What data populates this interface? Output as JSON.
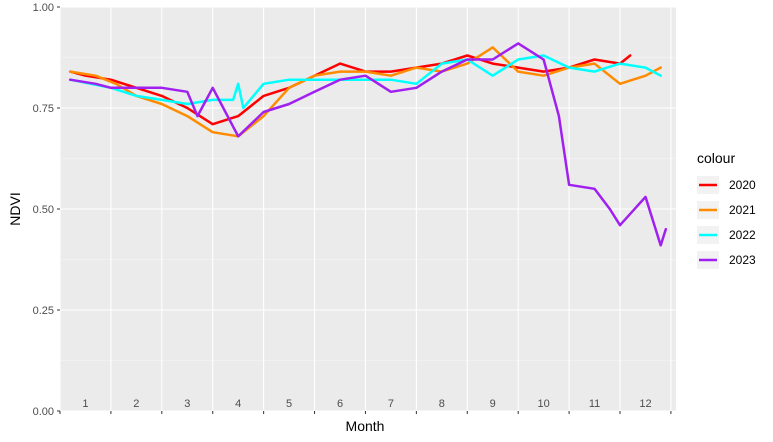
{
  "chart_data": {
    "type": "line",
    "title": "",
    "xlabel": "Month",
    "ylabel": "NDVI",
    "ylim": [
      0,
      1
    ],
    "xlim": [
      0.5,
      12.6
    ],
    "yticks": [
      0,
      0.25,
      0.5,
      0.75,
      1
    ],
    "ytick_labels": [
      "0.00",
      "0.25",
      "0.50",
      "0.75",
      "1.00"
    ],
    "month_labels": [
      "1",
      "2",
      "3",
      "4",
      "5",
      "6",
      "7",
      "8",
      "9",
      "10",
      "11",
      "12"
    ],
    "panel_background": "#ebebeb",
    "grid": true,
    "legend": {
      "title": "colour",
      "position": "right"
    },
    "series": [
      {
        "name": "2020",
        "color": "#ff0000",
        "x": [
          0.7,
          1.0,
          1.5,
          2.0,
          2.5,
          3.0,
          3.5,
          4.0,
          4.5,
          5.0,
          5.5,
          6.0,
          6.5,
          7.0,
          7.5,
          8.0,
          8.5,
          9.0,
          9.5,
          10.0,
          10.5,
          11.0,
          11.5,
          11.7
        ],
        "y": [
          0.84,
          0.83,
          0.82,
          0.8,
          0.78,
          0.75,
          0.71,
          0.73,
          0.78,
          0.8,
          0.83,
          0.86,
          0.84,
          0.84,
          0.85,
          0.86,
          0.88,
          0.86,
          0.85,
          0.84,
          0.85,
          0.87,
          0.86,
          0.88
        ]
      },
      {
        "name": "2021",
        "color": "#ff8c00",
        "x": [
          0.7,
          1.2,
          1.6,
          2.0,
          2.5,
          3.0,
          3.5,
          4.0,
          4.5,
          5.0,
          5.5,
          6.0,
          6.5,
          7.0,
          7.5,
          8.0,
          8.5,
          9.0,
          9.5,
          10.0,
          10.5,
          11.0,
          11.5,
          12.0,
          12.3
        ],
        "y": [
          0.84,
          0.83,
          0.81,
          0.78,
          0.76,
          0.73,
          0.69,
          0.68,
          0.73,
          0.8,
          0.83,
          0.84,
          0.84,
          0.83,
          0.85,
          0.84,
          0.86,
          0.9,
          0.84,
          0.83,
          0.85,
          0.86,
          0.81,
          0.83,
          0.85
        ]
      },
      {
        "name": "2022",
        "color": "#00ffff",
        "x": [
          0.7,
          1.1,
          1.5,
          2.0,
          2.5,
          3.0,
          3.5,
          3.9,
          4.0,
          4.1,
          4.5,
          5.0,
          5.5,
          6.0,
          6.5,
          7.0,
          7.5,
          8.0,
          8.5,
          9.0,
          9.5,
          10.0,
          10.5,
          11.0,
          11.5,
          12.0,
          12.3
        ],
        "y": [
          0.82,
          0.81,
          0.8,
          0.78,
          0.77,
          0.76,
          0.77,
          0.77,
          0.81,
          0.75,
          0.81,
          0.82,
          0.82,
          0.82,
          0.82,
          0.82,
          0.81,
          0.86,
          0.87,
          0.83,
          0.87,
          0.88,
          0.85,
          0.84,
          0.86,
          0.85,
          0.83
        ]
      },
      {
        "name": "2023",
        "color": "#a020f0",
        "x": [
          0.7,
          1.2,
          1.5,
          2.0,
          2.5,
          3.0,
          3.2,
          3.5,
          4.0,
          4.5,
          5.0,
          5.5,
          6.0,
          6.5,
          7.0,
          7.5,
          8.0,
          8.5,
          9.0,
          9.5,
          10.0,
          10.3,
          10.5,
          11.0,
          11.3,
          11.5,
          12.0,
          12.3,
          12.4
        ],
        "y": [
          0.82,
          0.81,
          0.8,
          0.8,
          0.8,
          0.79,
          0.73,
          0.8,
          0.68,
          0.74,
          0.76,
          0.79,
          0.82,
          0.83,
          0.79,
          0.8,
          0.84,
          0.87,
          0.87,
          0.91,
          0.87,
          0.73,
          0.56,
          0.55,
          0.5,
          0.46,
          0.53,
          0.41,
          0.45
        ]
      }
    ]
  }
}
